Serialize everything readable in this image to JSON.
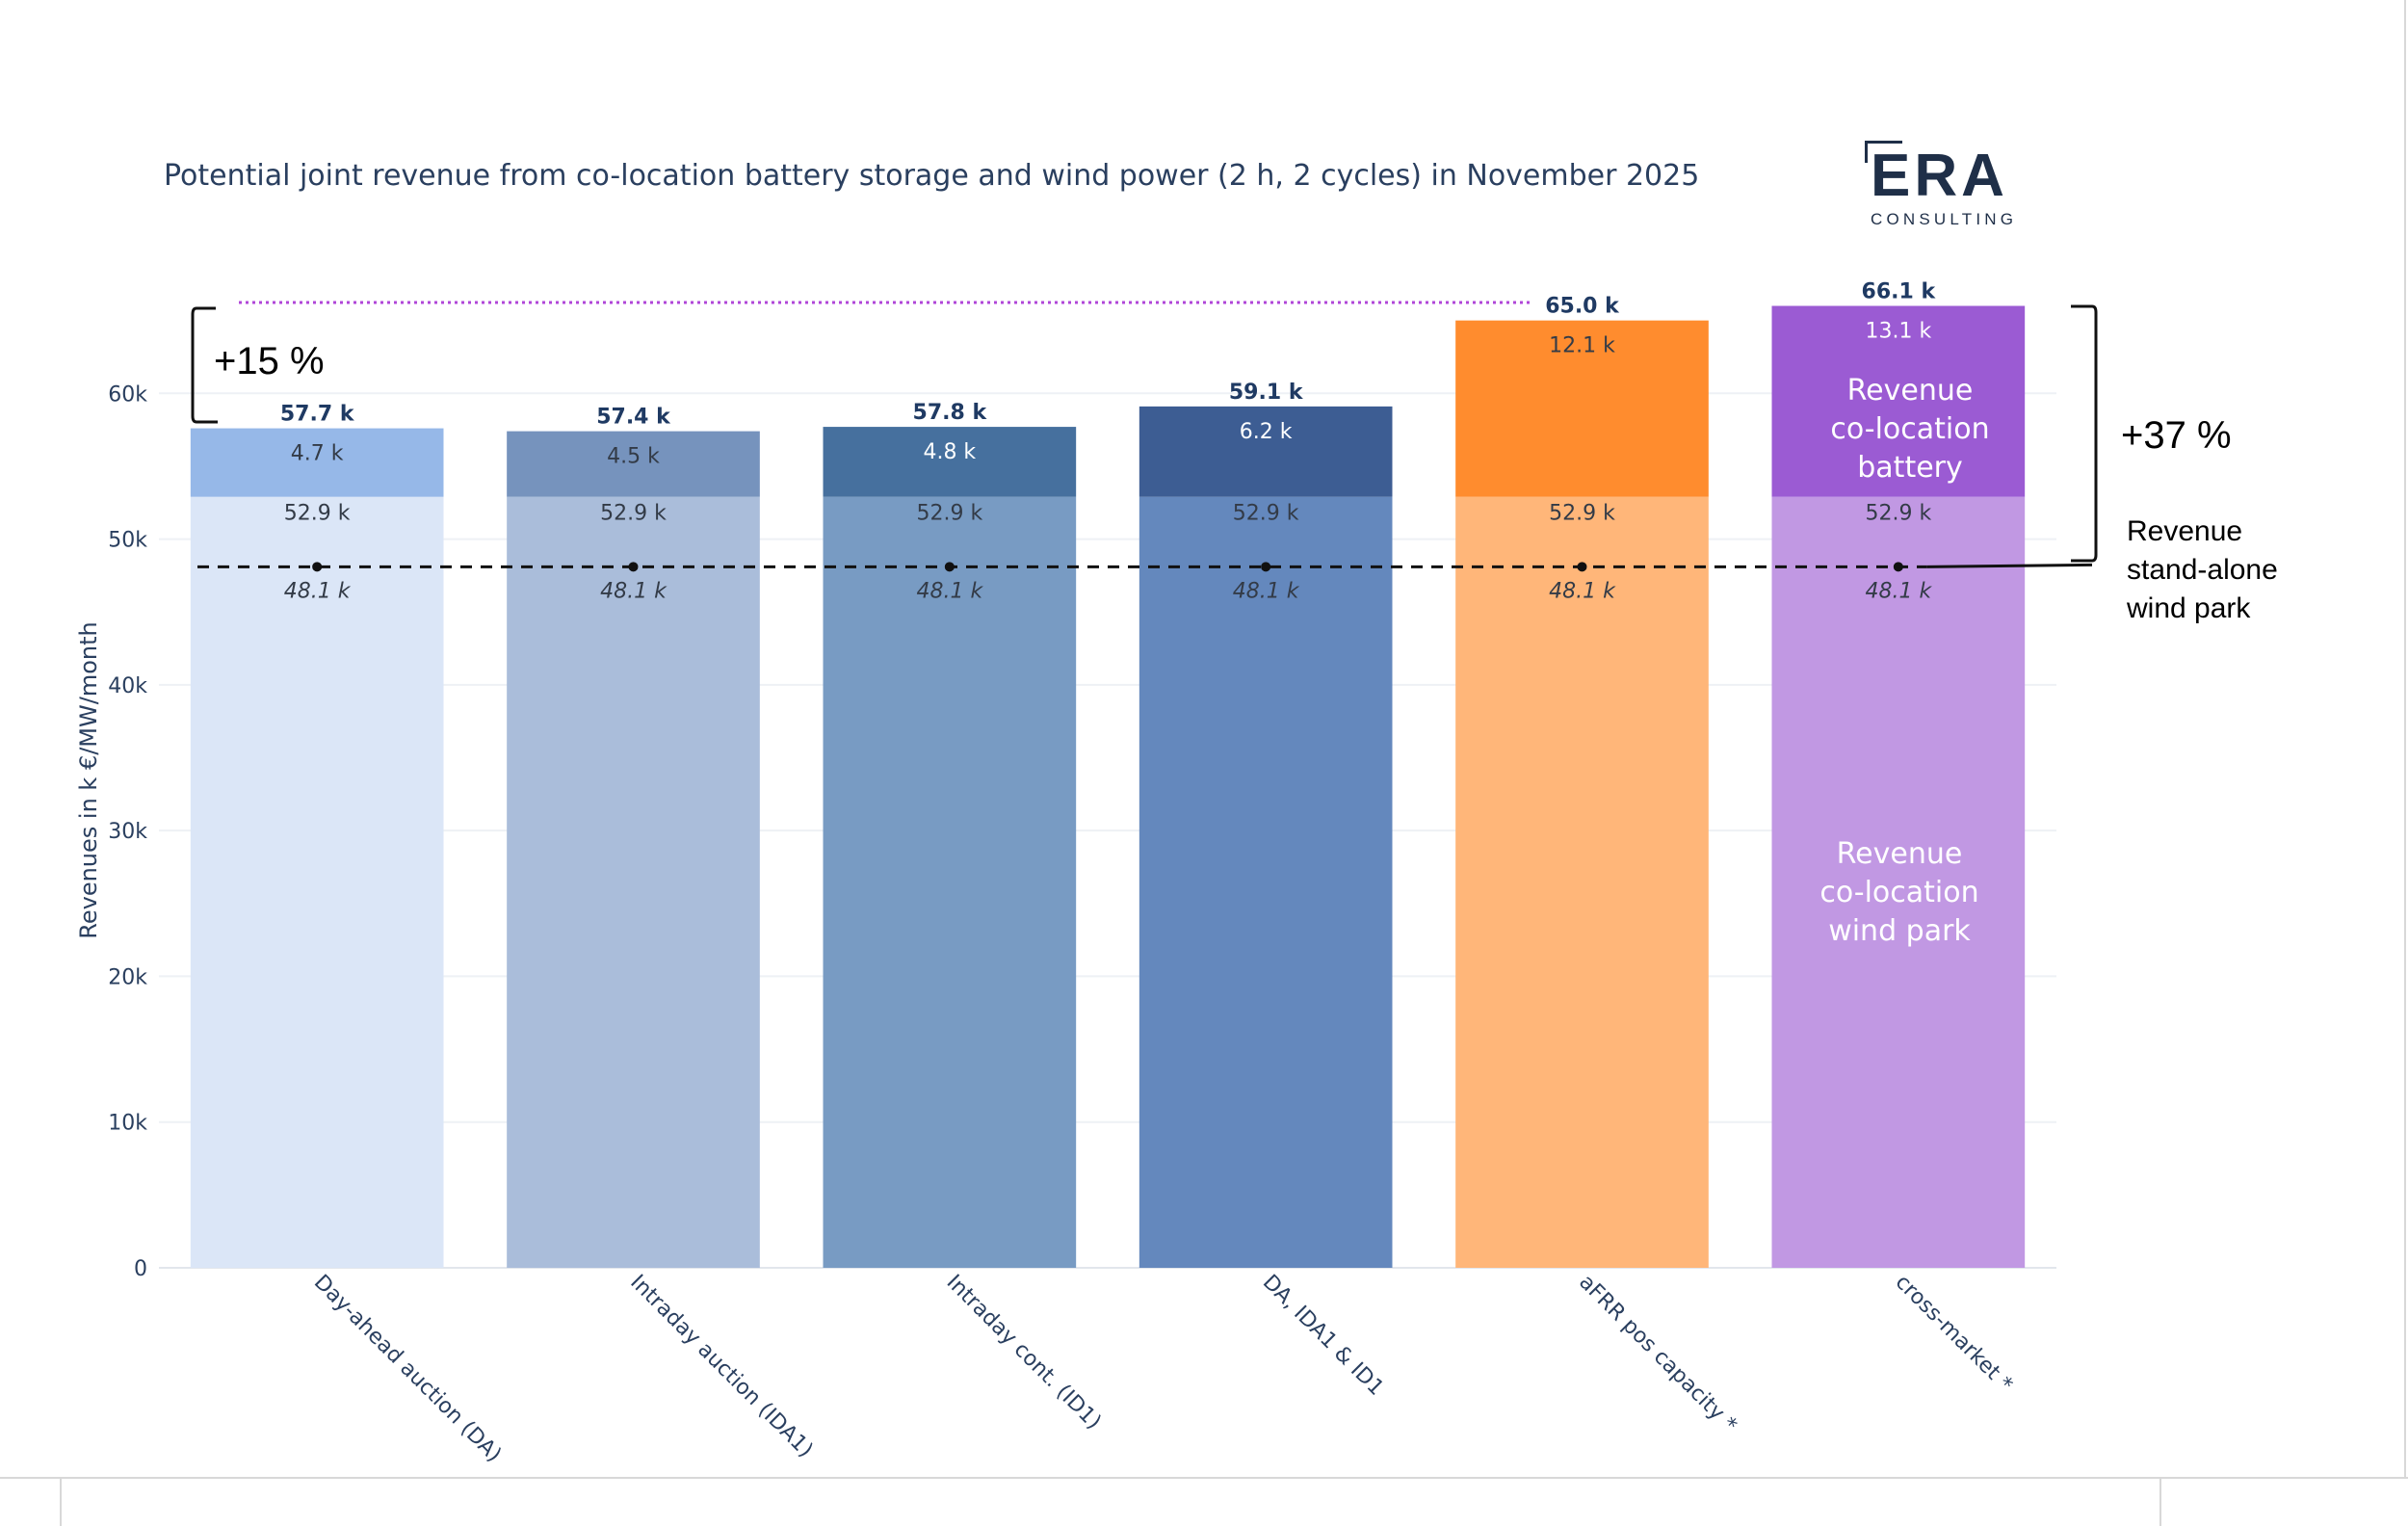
{
  "chart_data": {
    "type": "bar",
    "title": "Potential joint revenue from co-location battery storage and wind power (2 h, 2 cycles) in November 2025",
    "ylabel": "Revenues in k €/MW/month",
    "xlabel": "",
    "ylim": [
      0,
      66.1
    ],
    "yticks": [
      {
        "value": 0,
        "label": "0"
      },
      {
        "value": 10,
        "label": "10k"
      },
      {
        "value": 20,
        "label": "20k"
      },
      {
        "value": 30,
        "label": "30k"
      },
      {
        "value": 40,
        "label": "40k"
      },
      {
        "value": 50,
        "label": "50k"
      },
      {
        "value": 60,
        "label": "60k"
      }
    ],
    "grid": true,
    "categories": [
      "Day-ahead auction (DA)",
      "Intraday auction (IDA1)",
      "Intraday cont. (ID1)",
      "DA, IDA1 & ID1",
      "aFRR pos capacity *",
      "cross-market *"
    ],
    "series": [
      {
        "values": [
          52.9,
          52.9,
          52.9,
          52.9,
          52.9,
          52.9
        ],
        "labels": [
          "52.9 k",
          "52.9 k",
          "52.9 k",
          "52.9 k",
          "52.9 k",
          "52.9 k"
        ]
      },
      {
        "values": [
          4.7,
          4.5,
          4.8,
          6.2,
          12.1,
          13.1
        ],
        "labels": [
          "4.7 k",
          "4.5 k",
          "4.8 k",
          "6.2 k",
          "12.1 k",
          "13.1 k"
        ]
      }
    ],
    "totals": [
      57.7,
      57.4,
      57.8,
      59.1,
      65.0,
      66.1
    ],
    "total_labels": [
      "57.7 k",
      "57.4 k",
      "57.8 k",
      "59.1 k",
      "65.0 k",
      "66.1 k"
    ],
    "reference_line": {
      "value": 48.1,
      "label": "48.1 k",
      "style": "dashed"
    },
    "reference_max_dotted": 66.1,
    "colors": {
      "bottom": [
        "#dbe6f7",
        "#aabdda",
        "#789bc3",
        "#6488bd",
        "#ffb679",
        "#c198e3"
      ],
      "top": [
        "#96b8e8",
        "#7693bd",
        "#46709e",
        "#3d5d93",
        "#ff8c2e",
        "#9b5bd3"
      ],
      "total_text": "#1f3a63",
      "axis_text": "#2a3f5f",
      "purple_dotted": "#b046d8",
      "title": "#2a3f5f"
    },
    "annotations": {
      "left_bracket": "+15 %",
      "right_bracket": "+37 %",
      "wind_standalone": [
        "Revenue",
        "stand-alone",
        "wind park"
      ],
      "battery_label": [
        "Revenue",
        "co-location",
        "battery"
      ],
      "windpark_label": [
        "Revenue",
        "co-location",
        "wind park"
      ]
    }
  },
  "logo": {
    "main": "ERA",
    "sub": "CONSULTING"
  }
}
